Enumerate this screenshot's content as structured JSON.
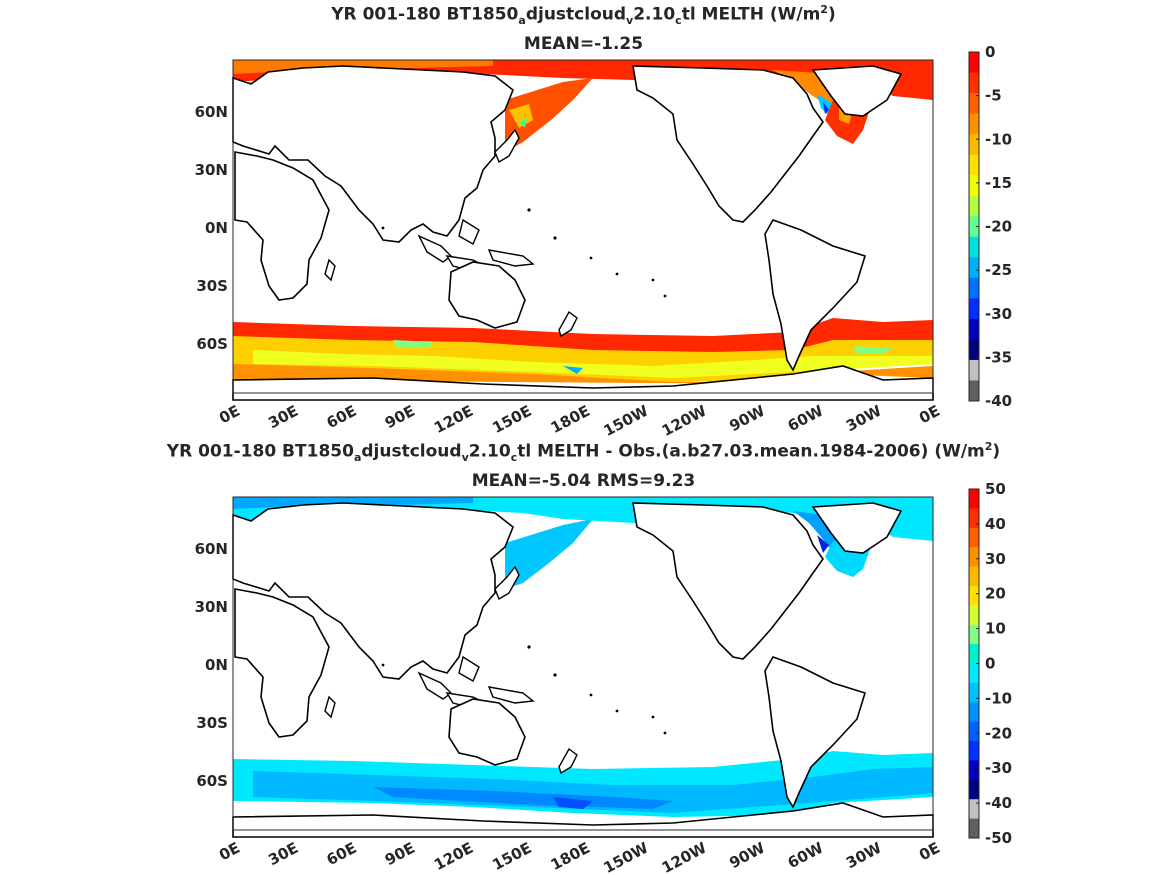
{
  "panels": [
    {
      "title": {
        "prefix": "YR 001-180 BT1850",
        "sub1": "a",
        "mid1": "djustcloud",
        "sub2": "v",
        "mid2": "2.10",
        "sub3": "c",
        "mid3": "tl  MELTH (W/m",
        "sup": "2",
        "suffix": ")"
      },
      "stat": "MEAN=-1.25",
      "lat_labels": [
        "60N",
        "30N",
        "0N",
        "30S",
        "60S"
      ],
      "lon_labels": [
        "0E",
        "30E",
        "60E",
        "90E",
        "120E",
        "150E",
        "180E",
        "150W",
        "120W",
        "90W",
        "60W",
        "30W",
        "0E"
      ],
      "colorbar": {
        "labels": [
          "0",
          "-5",
          "-10",
          "-15",
          "-20",
          "-25",
          "-30",
          "-35",
          "-40"
        ],
        "colors": [
          "#ff0000",
          "#ff3000",
          "#ff6000",
          "#ff9000",
          "#ffb800",
          "#ffe000",
          "#f0ff00",
          "#b0ff40",
          "#60ff90",
          "#00e0e0",
          "#00b0ff",
          "#0070ff",
          "#0030ff",
          "#0000c0",
          "#000080",
          "#c0c0c0",
          "#606060"
        ]
      }
    },
    {
      "title": {
        "prefix": "YR 001-180 BT1850",
        "sub1": "a",
        "mid1": "djustcloud",
        "sub2": "v",
        "mid2": "2.10",
        "sub3": "c",
        "mid3": "tl MELTH - Obs.(a.b27.03.mean.1984-2006) (W/m",
        "sup": "2",
        "suffix": ")"
      },
      "stat": "MEAN=-5.04 RMS=9.23",
      "lat_labels": [
        "60N",
        "30N",
        "0N",
        "30S",
        "60S"
      ],
      "lon_labels": [
        "0E",
        "30E",
        "60E",
        "90E",
        "120E",
        "150E",
        "180E",
        "150W",
        "120W",
        "90W",
        "60W",
        "30W",
        "0E"
      ],
      "colorbar": {
        "labels": [
          "50",
          "40",
          "30",
          "20",
          "10",
          "0",
          "-10",
          "-20",
          "-30",
          "-40",
          "-50"
        ],
        "colors": [
          "#ff0000",
          "#ff3000",
          "#ff6000",
          "#ff9000",
          "#ffb800",
          "#ffe000",
          "#d0ff30",
          "#80ff80",
          "#00f0d0",
          "#00e8ff",
          "#00c0ff",
          "#0090ff",
          "#0060ff",
          "#0030ff",
          "#0000c0",
          "#000080",
          "#c0c0c0",
          "#606060"
        ]
      }
    }
  ]
}
